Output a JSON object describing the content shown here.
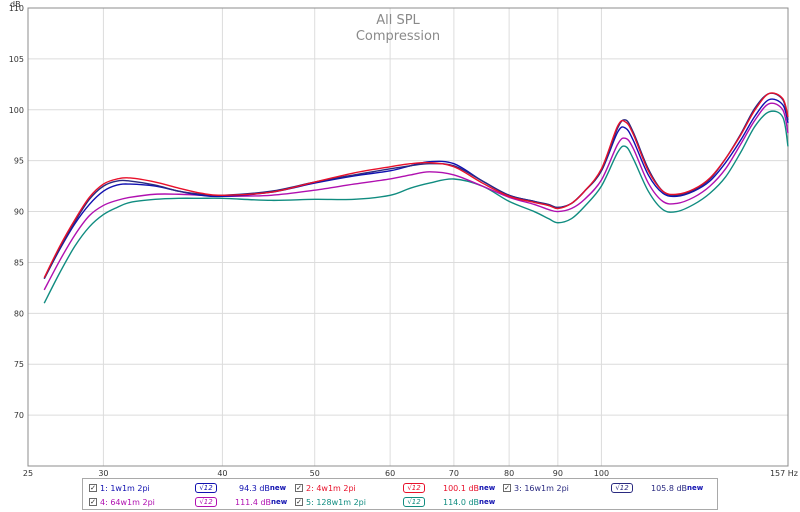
{
  "chart_data": {
    "type": "line",
    "title": "All SPL",
    "subtitle": "Compression",
    "ylabel": "dB",
    "xlabel": "",
    "x_unit": "Hz",
    "x_scale": "log",
    "xlim": [
      25,
      157
    ],
    "ylim": [
      65,
      110
    ],
    "x_ticks": [
      25,
      30,
      40,
      50,
      60,
      70,
      80,
      90,
      100,
      157
    ],
    "x_tick_labels": [
      "25",
      "30",
      "40",
      "50",
      "60",
      "70",
      "80",
      "90",
      "100",
      "157 Hz"
    ],
    "y_ticks": [
      70,
      75,
      80,
      85,
      90,
      95,
      100,
      105,
      110
    ],
    "y_tick_labels": [
      "70",
      "75",
      "80",
      "85",
      "90",
      "95",
      "100",
      "105",
      "110"
    ],
    "grid": true,
    "legend_position": "bottom",
    "x": [
      26,
      27,
      28,
      29,
      30,
      31,
      32,
      34,
      36,
      38,
      40,
      45,
      50,
      55,
      60,
      63,
      66,
      70,
      75,
      80,
      85,
      88,
      90,
      93,
      96,
      100,
      104,
      106,
      108,
      112,
      116,
      120,
      125,
      130,
      135,
      140,
      145,
      150,
      155,
      157
    ],
    "series": [
      {
        "name": "1: 1w1m 2pi",
        "color": "#1010b0",
        "values": [
          83.4,
          86.3,
          88.8,
          90.7,
          92.0,
          92.6,
          92.7,
          92.5,
          92.0,
          91.6,
          91.5,
          91.9,
          92.8,
          93.5,
          94.0,
          94.5,
          94.9,
          94.7,
          93.0,
          91.6,
          91.0,
          90.6,
          90.4,
          90.8,
          92.0,
          94.0,
          97.8,
          98.2,
          97.0,
          93.6,
          91.8,
          91.5,
          92.0,
          93.0,
          94.8,
          97.0,
          99.4,
          101.0,
          100.5,
          98.7
        ]
      },
      {
        "name": "2: 4w1m 2pi",
        "color": "#e8102a",
        "values": [
          83.5,
          86.6,
          89.2,
          91.4,
          92.7,
          93.2,
          93.3,
          92.9,
          92.3,
          91.8,
          91.6,
          91.9,
          92.9,
          93.8,
          94.4,
          94.7,
          94.8,
          94.4,
          92.8,
          91.5,
          90.9,
          90.6,
          90.3,
          90.8,
          92.0,
          94.2,
          98.4,
          98.8,
          97.6,
          94.0,
          92.0,
          91.7,
          92.2,
          93.3,
          95.2,
          97.5,
          100.0,
          101.6,
          101.1,
          99.3
        ]
      },
      {
        "name": "3: 16w1m 2pi",
        "color": "#2a2a80",
        "values": [
          83.4,
          86.4,
          89.0,
          91.2,
          92.5,
          93.0,
          93.0,
          92.6,
          92.0,
          91.7,
          91.6,
          92.0,
          92.9,
          93.6,
          94.2,
          94.5,
          94.7,
          94.5,
          93.0,
          91.6,
          91.0,
          90.7,
          90.4,
          90.8,
          92.0,
          94.0,
          98.2,
          99.0,
          97.8,
          94.2,
          92.0,
          91.6,
          92.1,
          93.2,
          95.2,
          97.6,
          100.2,
          101.6,
          101.0,
          99.0
        ]
      },
      {
        "name": "4: 64w1m 2pi",
        "color": "#b010b0",
        "values": [
          82.3,
          85.2,
          87.7,
          89.6,
          90.6,
          91.1,
          91.4,
          91.7,
          91.7,
          91.6,
          91.5,
          91.6,
          92.1,
          92.7,
          93.2,
          93.6,
          93.9,
          93.6,
          92.5,
          91.4,
          90.7,
          90.2,
          90.0,
          90.3,
          91.2,
          93.1,
          96.6,
          97.2,
          96.2,
          92.8,
          91.0,
          90.8,
          91.4,
          92.5,
          94.2,
          96.6,
          99.0,
          100.6,
          100.0,
          97.7
        ]
      },
      {
        "name": "5: 128w1m 2pi",
        "color": "#108c80",
        "values": [
          81.0,
          84.0,
          86.6,
          88.5,
          89.7,
          90.4,
          90.9,
          91.2,
          91.3,
          91.3,
          91.3,
          91.1,
          91.2,
          91.2,
          91.6,
          92.3,
          92.8,
          93.2,
          92.5,
          91.0,
          90.0,
          89.3,
          88.9,
          89.3,
          90.5,
          92.5,
          95.8,
          96.4,
          95.2,
          92.0,
          90.2,
          90.0,
          90.7,
          91.8,
          93.4,
          95.8,
          98.4,
          99.8,
          99.3,
          96.4
        ]
      }
    ]
  },
  "legend": {
    "items": [
      {
        "name": "1: 1w1m 2pi",
        "color": "#1010b0",
        "icon_color": "#1010b0",
        "value": "94.3 dB",
        "new_label": "new",
        "checked": "✓",
        "icon": "√12"
      },
      {
        "name": "2: 4w1m 2pi",
        "color": "#e8102a",
        "icon_color": "#e8102a",
        "value": "100.1 dB",
        "new_label": "new",
        "checked": "✓",
        "icon": "√12"
      },
      {
        "name": "3: 16w1m 2pi",
        "color": "#2a2a80",
        "icon_color": "#2a2a80",
        "value": "105.8 dB",
        "new_label": "new",
        "checked": "✓",
        "icon": "√12"
      },
      {
        "name": "4: 64w1m 2pi",
        "color": "#b010b0",
        "icon_color": "#b010b0",
        "value": "111.4 dB",
        "new_label": "new",
        "checked": "✓",
        "icon": "√12"
      },
      {
        "name": "5: 128w1m 2pi",
        "color": "#108c80",
        "icon_color": "#108c80",
        "value": "114.0 dB",
        "new_label": "new",
        "checked": "✓",
        "icon": "√12"
      }
    ]
  }
}
